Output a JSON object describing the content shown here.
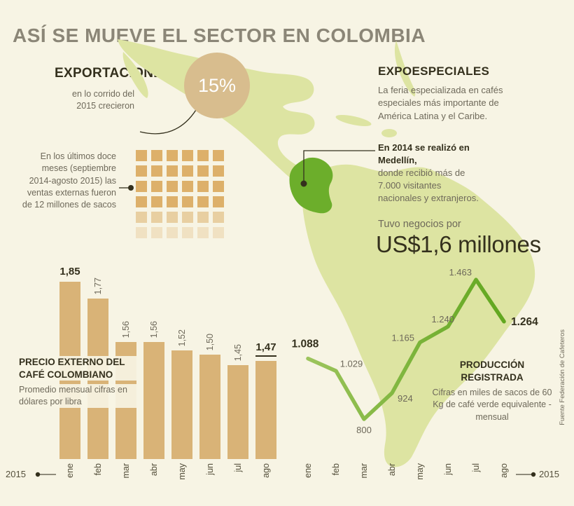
{
  "title": "ASÍ SE MUEVE EL SECTOR EN COLOMBIA",
  "colors": {
    "background": "#f7f4e4",
    "title": "#8b8677",
    "map": "#dde4a2",
    "colombia": "#6cae2b",
    "badge": "#d8bd8e",
    "tan": "#ddb06a",
    "bar": "#d9b377",
    "line": "#61a71f",
    "line_light": "#9cc45c",
    "text_dark": "#34301d",
    "text_gray": "#6e695a",
    "month": "#55503c"
  },
  "exportaciones": {
    "heading": "EXPORTACIONES",
    "note": "en lo corrido del 2015 crecieron",
    "badge": "15%"
  },
  "sacos": {
    "text": "En los últimos doce meses (septiembre 2014-agosto 2015) las ventas externas fueron de 12 millones de sacos",
    "grid": {
      "cols": 6,
      "rows": 6,
      "row_opacity": [
        1,
        1,
        1,
        1,
        0.55,
        0.28
      ]
    }
  },
  "expoespeciales": {
    "heading": "EXPOESPECIALES",
    "desc": "La feria especializada en cafés especiales más importante de América Latina y el Caribe.",
    "bold_lead": "En 2014 se realizó en Medellín,",
    "detail": "donde recibió más de 7.000 visitantes nacionales y extranjeros.",
    "negocios_label": "Tuvo negocios por",
    "negocios_value": "US$1,6 millones"
  },
  "chart_data": [
    {
      "type": "bar",
      "title": "PRECIO EXTERNO DEL CAFÉ COLOMBIANO",
      "subtitle": "Promedio mensual cifras en dólares por libra",
      "categories": [
        "ene",
        "feb",
        "mar",
        "abr",
        "may",
        "jun",
        "jul",
        "ago"
      ],
      "values": [
        1.85,
        1.77,
        1.56,
        1.56,
        1.52,
        1.5,
        1.45,
        1.47
      ],
      "value_labels": [
        "1,85",
        "1,77",
        "1,56",
        "1,56",
        "1,52",
        "1,50",
        "1,45",
        "1,47"
      ],
      "ylim": [
        1.0,
        1.95
      ],
      "year_label": "2015",
      "legend": "none",
      "grid": "off"
    },
    {
      "type": "line",
      "title": "PRODUCCIÓN REGISTRADA",
      "subtitle": "Cifras en miles de sacos de 60 Kg de café verde equivalente - mensual",
      "categories": [
        "ene",
        "feb",
        "mar",
        "abr",
        "may",
        "jun",
        "jul",
        "ago"
      ],
      "values": [
        1088,
        1029,
        800,
        924,
        1165,
        1240,
        1463,
        1264
      ],
      "value_labels": [
        "1.088",
        "1.029",
        "800",
        "924",
        "1.165",
        "1.240",
        "1.463",
        "1.264"
      ],
      "ylim": [
        760,
        1500
      ],
      "year_label": "2015",
      "legend": "none",
      "grid": "off"
    }
  ],
  "source": "Fuente Federación de Cafeteros"
}
